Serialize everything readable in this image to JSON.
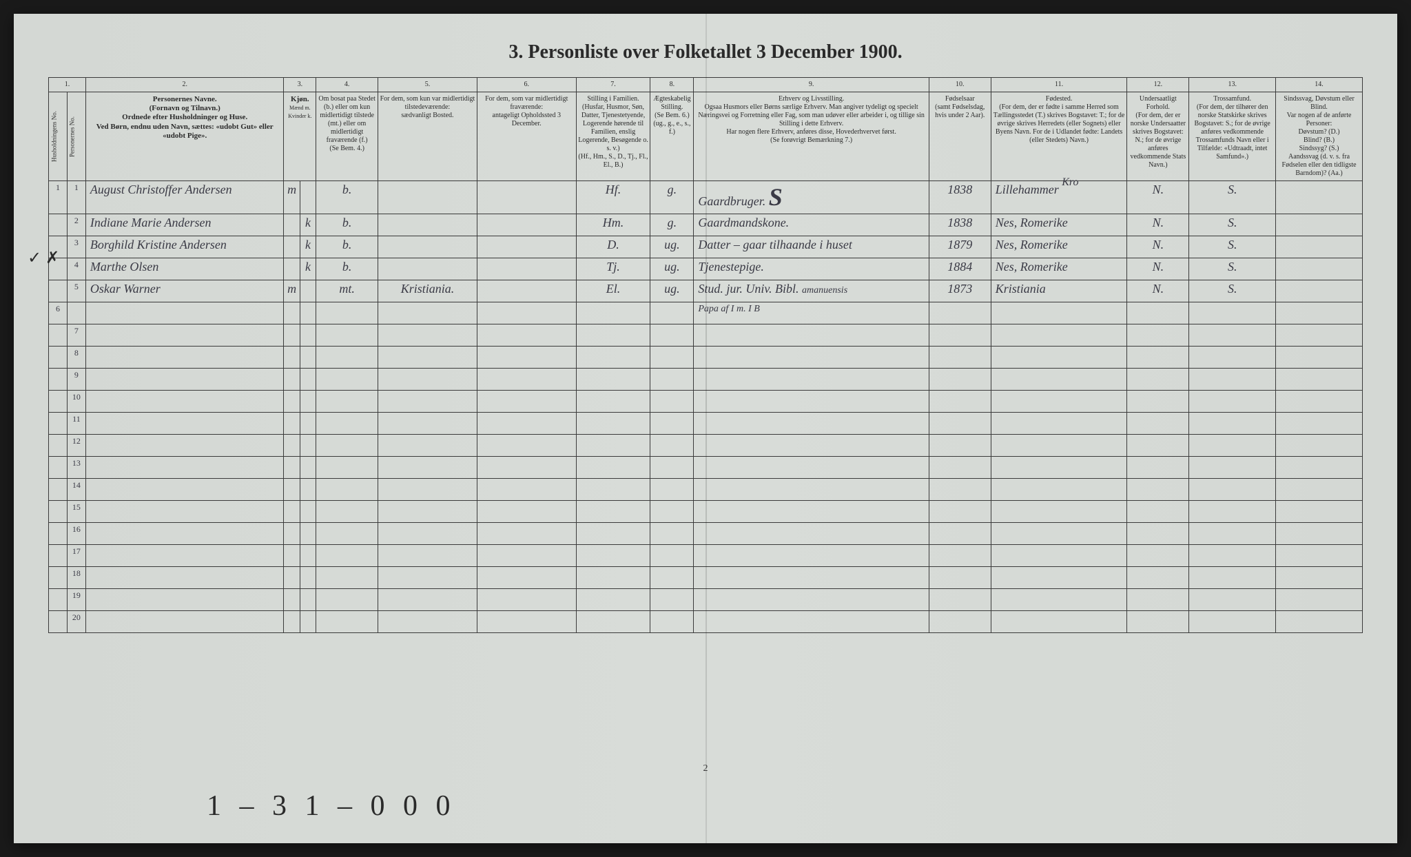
{
  "title": "3.  Personliste over Folketallet 3 December 1900.",
  "page_number": "2",
  "annotation_left": "✓ ✗",
  "bottom_annotation": "1 – 3   1 – 0 0 0",
  "columns": {
    "c1": "1.",
    "c2": "2.",
    "c3": "3.",
    "c4": "4.",
    "c5": "5.",
    "c6": "6.",
    "c7": "7.",
    "c8": "8.",
    "c9": "9.",
    "c10": "10.",
    "c11": "11.",
    "c12": "12.",
    "c13": "13.",
    "c14": "14."
  },
  "headers": {
    "h1a": "Husholdningens No.",
    "h1b": "Personernes No.",
    "h2": "Personernes Navne.\n(Fornavn og Tilnavn.)\nOrdnede efter Husholdninger og Huse.\nVed Børn, endnu uden Navn, sættes: «udobt Gut» eller «udobt Pige».",
    "h3a": "Kjøn.",
    "h3b": "Mænd m.",
    "h3c": "Kvinder k.",
    "h4": "Om bosat paa Stedet (b.) eller om kun midlertidigt tilstede (mt.) eller om midlertidigt fraværende (f.)\n(Se Bem. 4.)",
    "h5": "For dem, som kun var midlertidigt tilstedeværende:\nsædvanligt Bosted.",
    "h6": "For dem, som var midlertidigt fraværende:\nantageligt Opholdssted 3 December.",
    "h7": "Stilling i Familien.\n(Husfar, Husmor, Søn, Datter, Tjenestetyende, Logerende hørende til Familien, enslig Logerende, Besøgende o. s. v.)\n(Hf., Hm., S., D., Tj., Fl., El., B.)",
    "h8": "Ægteskabelig Stilling.\n(Se Bem. 6.)\n(ug., g., e., s., f.)",
    "h9": "Erhverv og Livsstilling.\nOgsaa Husmors eller Børns særlige Erhverv. Man angiver tydeligt og specielt Næringsvei og Forretning eller Fag, som man udøver eller arbeider i, og tillige sin Stilling i dette Erhverv.\nHar nogen flere Erhverv, anføres disse, Hovederhvervet først.\n(Se forøvrigt Bemærkning 7.)",
    "h10": "Fødselsaar\n(samt Fødselsdag, hvis under 2 Aar).",
    "h11": "Fødested.\n(For dem, der er fødte i samme Herred som Tællingsstedet (T.) skrives Bogstavet: T.; for de øvrige skrives Herredets (eller Sognets) eller Byens Navn. For de i Udlandet fødte: Landets (eller Stedets) Navn.)",
    "h12": "Undersaatligt Forhold.\n(For dem, der er norske Undersaatter skrives Bogstavet: N.; for de øvrige anføres vedkommende Stats Navn.)",
    "h13": "Trossamfund.\n(For dem, der tilhører den norske Statskirke skrives Bogstavet: S.; for de øvrige anføres vedkommende Trossamfunds Navn eller i Tilfælde: «Udtraadt, intet Samfund».)",
    "h14": "Sindssvag, Døvstum eller Blind.\nVar nogen af de anførte Personer:\nDøvstum? (D.)\nBlind? (B.)\nSindssyg? (S.)\nAandssvag (d. v. s. fra Fødselen eller den tidligste Barndom)? (Aa.)"
  },
  "rows": [
    {
      "hh": "1",
      "pn": "1",
      "name": "August Christoffer Andersen",
      "sex": "m",
      "res": "b.",
      "temp": "",
      "absent": "",
      "fam": "Hf.",
      "marital": "g.",
      "occupation": "Gaardbruger.",
      "occ_extra": "S",
      "year": "1838",
      "birthplace": "Lillehammer",
      "birthplace_extra": "Kro",
      "nat": "N.",
      "faith": "S.",
      "dis": ""
    },
    {
      "hh": "",
      "pn": "2",
      "name": "Indiane Marie Andersen",
      "sex": "k",
      "res": "b.",
      "temp": "",
      "absent": "",
      "fam": "Hm.",
      "marital": "g.",
      "occupation": "Gaardmandskone.",
      "occ_extra": "",
      "year": "1838",
      "birthplace": "Nes, Romerike",
      "birthplace_extra": "",
      "nat": "N.",
      "faith": "S.",
      "dis": ""
    },
    {
      "hh": "",
      "pn": "3",
      "name": "Borghild Kristine Andersen",
      "sex": "k",
      "res": "b.",
      "temp": "",
      "absent": "",
      "fam": "D.",
      "marital": "ug.",
      "occupation": "Datter – gaar tilhaande i huset",
      "occ_extra": "",
      "year": "1879",
      "birthplace": "Nes, Romerike",
      "birthplace_extra": "",
      "nat": "N.",
      "faith": "S.",
      "dis": ""
    },
    {
      "hh": "",
      "pn": "4",
      "name": "Marthe Olsen",
      "sex": "k",
      "res": "b.",
      "temp": "",
      "absent": "",
      "fam": "Tj.",
      "marital": "ug.",
      "occupation": "Tjenestepige.",
      "occ_extra": "",
      "year": "1884",
      "birthplace": "Nes, Romerike",
      "birthplace_extra": "",
      "nat": "N.",
      "faith": "S.",
      "dis": ""
    },
    {
      "hh": "",
      "pn": "5",
      "name": "Oskar Warner",
      "sex": "m",
      "res": "mt.",
      "temp": "Kristiania.",
      "absent": "",
      "fam": "El.",
      "marital": "ug.",
      "occupation": "Stud. jur. Univ. Bibl.",
      "occ_extra": "amanuensis",
      "year": "1873",
      "birthplace": "Kristiania",
      "birthplace_extra": "",
      "nat": "N.",
      "faith": "S.",
      "dis": ""
    }
  ],
  "extra_row_text": "Papa af I m. I B",
  "empty_rows": 14,
  "colors": {
    "paper": "#d4d8d4",
    "ink": "#2a2a2a",
    "handwriting": "#3a3a45",
    "border": "#3a3a3a"
  },
  "column_widths_pct": [
    1.5,
    1.5,
    16,
    1.3,
    1.3,
    5,
    8,
    8,
    6,
    3.5,
    19,
    5,
    11,
    5,
    7,
    7
  ]
}
